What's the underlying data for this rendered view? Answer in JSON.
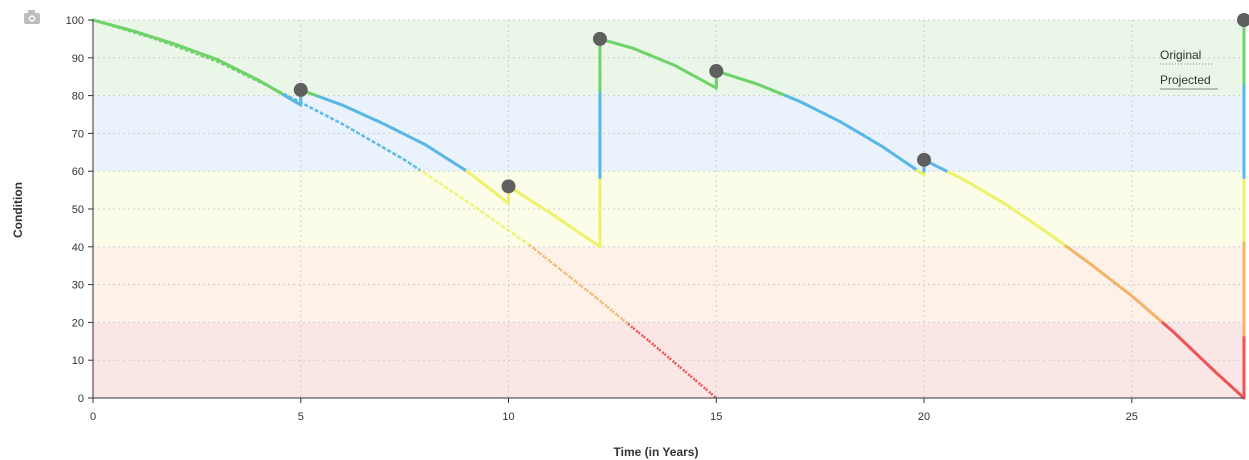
{
  "toolbar": {
    "camera_icon": "camera-icon"
  },
  "chart_data": {
    "type": "line",
    "xlabel": "Time (in Years)",
    "ylabel": "Condition",
    "xlim": [
      0,
      27.7
    ],
    "ylim": [
      0,
      100
    ],
    "x_ticks": [
      0,
      5,
      10,
      15,
      20,
      25
    ],
    "y_ticks": [
      0,
      10,
      20,
      30,
      40,
      50,
      60,
      70,
      80,
      90,
      100
    ],
    "grid": true,
    "legend_position": "top-right",
    "legend": [
      "Original",
      "Projected"
    ],
    "bands": [
      {
        "from": 80,
        "to": 100,
        "color": "#eaf6e8"
      },
      {
        "from": 60,
        "to": 80,
        "color": "#eaf3fb"
      },
      {
        "from": 40,
        "to": 60,
        "color": "#fbfde9"
      },
      {
        "from": 20,
        "to": 40,
        "color": "#fdf1e8"
      },
      {
        "from": 0,
        "to": 20,
        "color": "#fbe6e6"
      }
    ],
    "condition_colors": [
      {
        "min": 80,
        "color": "#6fd36a"
      },
      {
        "min": 60,
        "color": "#5ab8e6"
      },
      {
        "min": 40,
        "color": "#eef26b"
      },
      {
        "min": 20,
        "color": "#f5b36a"
      },
      {
        "min": 0,
        "color": "#ef5454"
      }
    ],
    "series": [
      {
        "name": "Original",
        "style": "dotted",
        "x": [
          0,
          1.5,
          3,
          4.5,
          6,
          7.5,
          9,
          10.5,
          12,
          13.5,
          15
        ],
        "y": [
          100,
          95,
          89,
          81,
          72.5,
          63,
          52,
          40.5,
          27.5,
          14,
          0
        ]
      },
      {
        "name": "Projected",
        "style": "solid",
        "segments": [
          {
            "x": [
              0,
              1,
              2,
              3,
              4,
              5
            ],
            "y": [
              100,
              97,
              93.5,
              89.5,
              84,
              77.5
            ]
          },
          {
            "x": [
              5,
              5
            ],
            "y": [
              77.5,
              81.5
            ]
          },
          {
            "x": [
              5,
              6,
              7,
              8,
              9,
              10
            ],
            "y": [
              81.5,
              77.5,
              72.5,
              67,
              60,
              51.5
            ]
          },
          {
            "x": [
              10,
              10
            ],
            "y": [
              51.5,
              56
            ]
          },
          {
            "x": [
              10,
              11,
              12.2
            ],
            "y": [
              56,
              49,
              40
            ]
          },
          {
            "x": [
              12.2,
              12.2
            ],
            "y": [
              40,
              95
            ]
          },
          {
            "x": [
              12.2,
              13,
              14,
              15
            ],
            "y": [
              95,
              92.5,
              88,
              82
            ]
          },
          {
            "x": [
              15,
              15
            ],
            "y": [
              82,
              86.5
            ]
          },
          {
            "x": [
              15,
              16,
              17,
              18,
              19,
              20
            ],
            "y": [
              86.5,
              83,
              78.5,
              73,
              66.5,
              59
            ]
          },
          {
            "x": [
              20,
              20
            ],
            "y": [
              59,
              63
            ]
          },
          {
            "x": [
              20,
              21,
              22,
              23,
              24,
              25,
              26,
              27,
              27.7
            ],
            "y": [
              63,
              57.5,
              51,
              43.5,
              35.5,
              27,
              17.5,
              7,
              0
            ]
          },
          {
            "x": [
              27.7,
              27.7
            ],
            "y": [
              0,
              100
            ]
          }
        ]
      }
    ],
    "markers": [
      {
        "x": 5,
        "y": 81.5
      },
      {
        "x": 10,
        "y": 56
      },
      {
        "x": 12.2,
        "y": 95
      },
      {
        "x": 15,
        "y": 86.5
      },
      {
        "x": 20,
        "y": 63
      },
      {
        "x": 27.7,
        "y": 100
      }
    ]
  }
}
